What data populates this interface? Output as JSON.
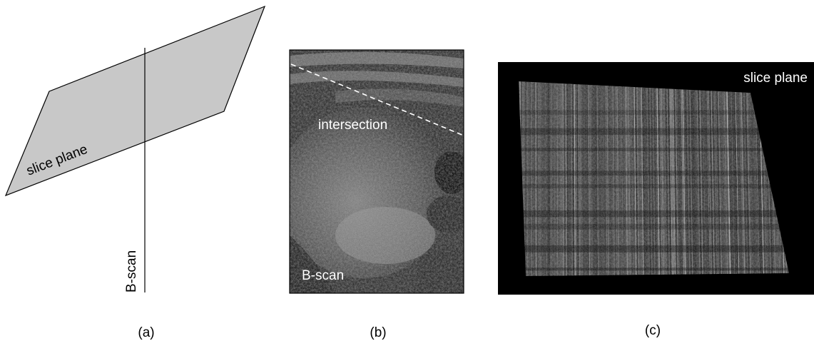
{
  "panels": [
    {
      "caption": "(a)",
      "plane_label": "slice plane",
      "scan_label": "B-scan"
    },
    {
      "caption": "(b)",
      "intersection_label": "intersection",
      "scan_label": "B-scan"
    },
    {
      "caption": "(c)",
      "plane_label": "slice plane"
    }
  ],
  "colors": {
    "plane_fill": "#c8c8c8",
    "outline": "#000000",
    "ultrasound_bg": "#1a1a1a",
    "dark_bg": "#000000",
    "label_light": "#ffffff"
  }
}
